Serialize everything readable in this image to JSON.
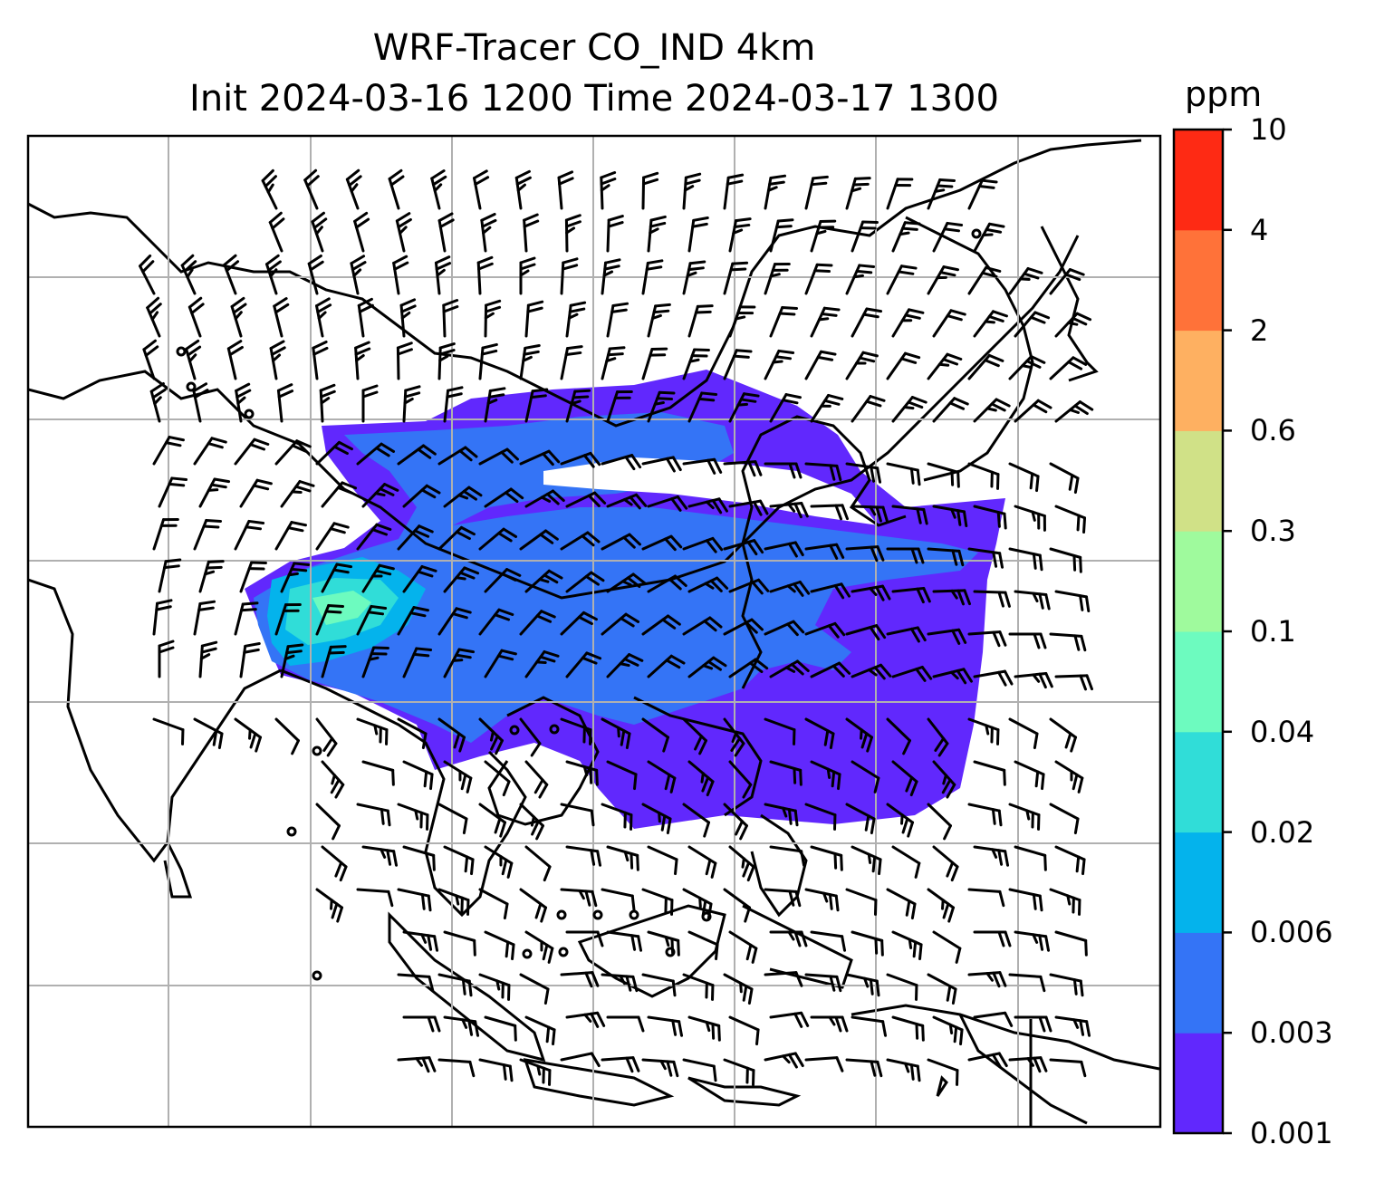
{
  "title": {
    "line1": "WRF-Tracer CO_IND 4km",
    "line2": "Init 2024-03-16 1200 Time 2024-03-17 1300"
  },
  "colorbar": {
    "unit": "ppm",
    "levels": [
      "0.001",
      "0.003",
      "0.006",
      "0.02",
      "0.04",
      "0.1",
      "0.3",
      "0.6",
      "2",
      "4",
      "10"
    ],
    "colors": [
      "#6128fd",
      "#3474f6",
      "#04b3ec",
      "#30ddd8",
      "#6dfbbf",
      "#9ffa9d",
      "#d0e187",
      "#feb061",
      "#ff7239",
      "#fe2a14"
    ]
  },
  "map": {
    "background": "#ffffff",
    "gridline_color": "#b0b0b0",
    "coastline_color": "#000000",
    "overlay": "wind-barbs"
  }
}
